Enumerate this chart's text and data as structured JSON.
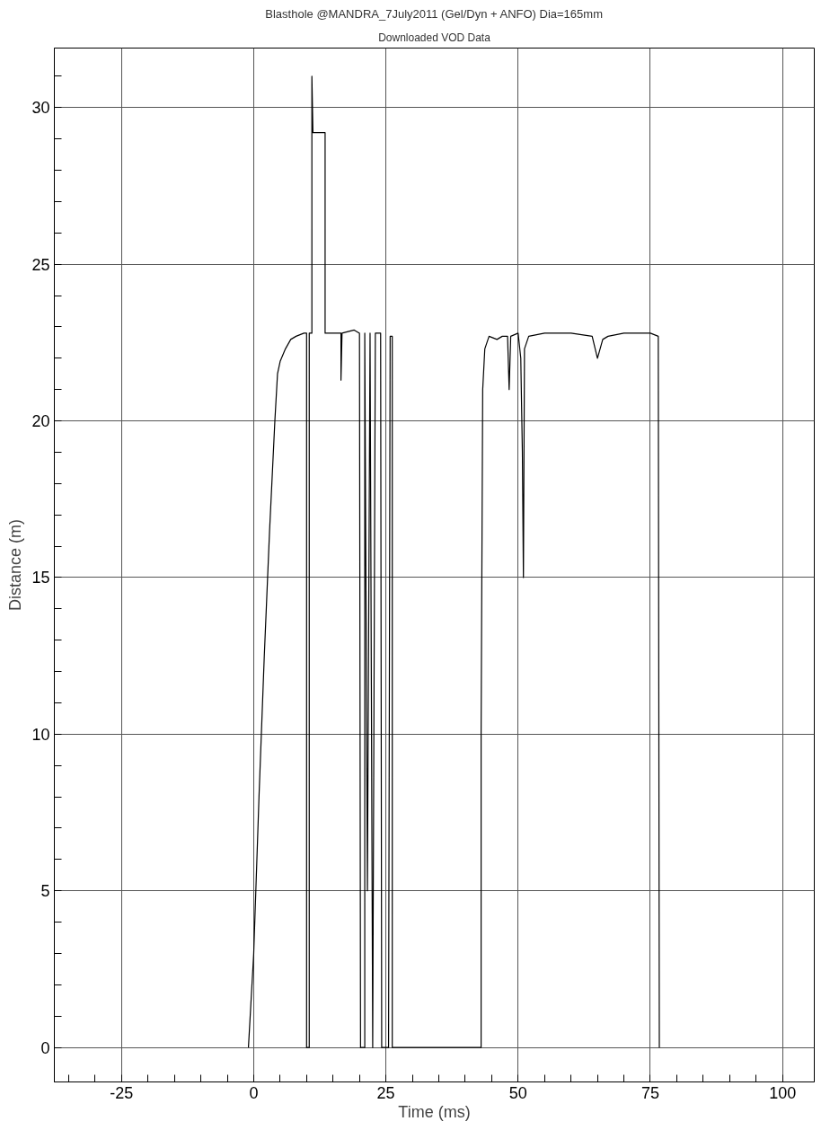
{
  "chart_data": {
    "type": "line",
    "title": "Blasthole @MANDRA_7July2011 (Gel/Dyn + ANFO) Dia=165mm",
    "subtitle": "Downloaded VOD Data",
    "xlabel": "Time (ms)",
    "ylabel": "Distance (m)",
    "x": [
      -1,
      0,
      1,
      2,
      3,
      4,
      4.5,
      5,
      6,
      7,
      8,
      9.5,
      10,
      10,
      10.5,
      10.5,
      11,
      11,
      11.2,
      13.5,
      13.5,
      16.5,
      16.5,
      16.7,
      19,
      20,
      20.2,
      21,
      21,
      21.5,
      22,
      22.5,
      23,
      24,
      24.2,
      25.5,
      25.8,
      26.2,
      26.2,
      43,
      43,
      43.3,
      43.7,
      44.5,
      46,
      47,
      48,
      48.3,
      48.6,
      50,
      50.5,
      50.8,
      51,
      51.2,
      52,
      55,
      60,
      64,
      65,
      66,
      67,
      70,
      75,
      76.5,
      76.7
    ],
    "series": [
      {
        "color": "#000000",
        "values": [
          0,
          3,
          8,
          12.5,
          16.5,
          20,
          21.5,
          21.9,
          22.3,
          22.6,
          22.7,
          22.8,
          22.8,
          0,
          0,
          22.8,
          22.8,
          31,
          29.2,
          29.2,
          22.8,
          22.8,
          21.3,
          22.8,
          22.9,
          22.8,
          0,
          0,
          22.8,
          5,
          22.8,
          0,
          22.8,
          22.8,
          0,
          0,
          22.7,
          22.7,
          0,
          0,
          10,
          21,
          22.3,
          22.7,
          22.6,
          22.7,
          22.7,
          21,
          22.7,
          22.8,
          22,
          19,
          15,
          22.3,
          22.7,
          22.8,
          22.8,
          22.7,
          22,
          22.6,
          22.7,
          22.8,
          22.8,
          22.7,
          0
        ]
      }
    ],
    "xlim": [
      -37.7,
      106
    ],
    "ylim": [
      -1.1,
      31.9
    ],
    "xticks": [
      {
        "value": -35,
        "label": null
      },
      {
        "value": -30,
        "label": null
      },
      -25,
      {
        "value": -20,
        "label": null
      },
      {
        "value": -15,
        "label": null
      },
      {
        "value": -10,
        "label": null
      },
      {
        "value": -5,
        "label": null
      },
      0,
      {
        "value": 5,
        "label": null
      },
      {
        "value": 10,
        "label": null
      },
      {
        "value": 15,
        "label": null
      },
      {
        "value": 20,
        "label": null
      },
      25,
      {
        "value": 30,
        "label": null
      },
      {
        "value": 35,
        "label": null
      },
      {
        "value": 40,
        "label": null
      },
      {
        "value": 45,
        "label": null
      },
      50,
      {
        "value": 55,
        "label": null
      },
      {
        "value": 60,
        "label": null
      },
      {
        "value": 65,
        "label": null
      },
      {
        "value": 70,
        "label": null
      },
      75,
      {
        "value": 80,
        "label": null
      },
      {
        "value": 85,
        "label": null
      },
      {
        "value": 90,
        "label": null
      },
      {
        "value": 95,
        "label": null
      },
      100
    ],
    "yticks": [
      0,
      {
        "value": 1,
        "label": null
      },
      {
        "value": 2,
        "label": null
      },
      {
        "value": 3,
        "label": null
      },
      {
        "value": 4,
        "label": null
      },
      5,
      {
        "value": 6,
        "label": null
      },
      {
        "value": 7,
        "label": null
      },
      {
        "value": 8,
        "label": null
      },
      {
        "value": 9,
        "label": null
      },
      10,
      {
        "value": 11,
        "label": null
      },
      {
        "value": 12,
        "label": null
      },
      {
        "value": 13,
        "label": null
      },
      {
        "value": 14,
        "label": null
      },
      15,
      {
        "value": 16,
        "label": null
      },
      {
        "value": 17,
        "label": null
      },
      {
        "value": 18,
        "label": null
      },
      {
        "value": 19,
        "label": null
      },
      20,
      {
        "value": 21,
        "label": null
      },
      {
        "value": 22,
        "label": null
      },
      {
        "value": 23,
        "label": null
      },
      {
        "value": 24,
        "label": null
      },
      25,
      {
        "value": 26,
        "label": null
      },
      {
        "value": 27,
        "label": null
      },
      {
        "value": 28,
        "label": null
      },
      {
        "value": 29,
        "label": null
      },
      30,
      {
        "value": 31,
        "label": null
      }
    ],
    "grid": true,
    "marker": "none",
    "line_style": "solid"
  }
}
